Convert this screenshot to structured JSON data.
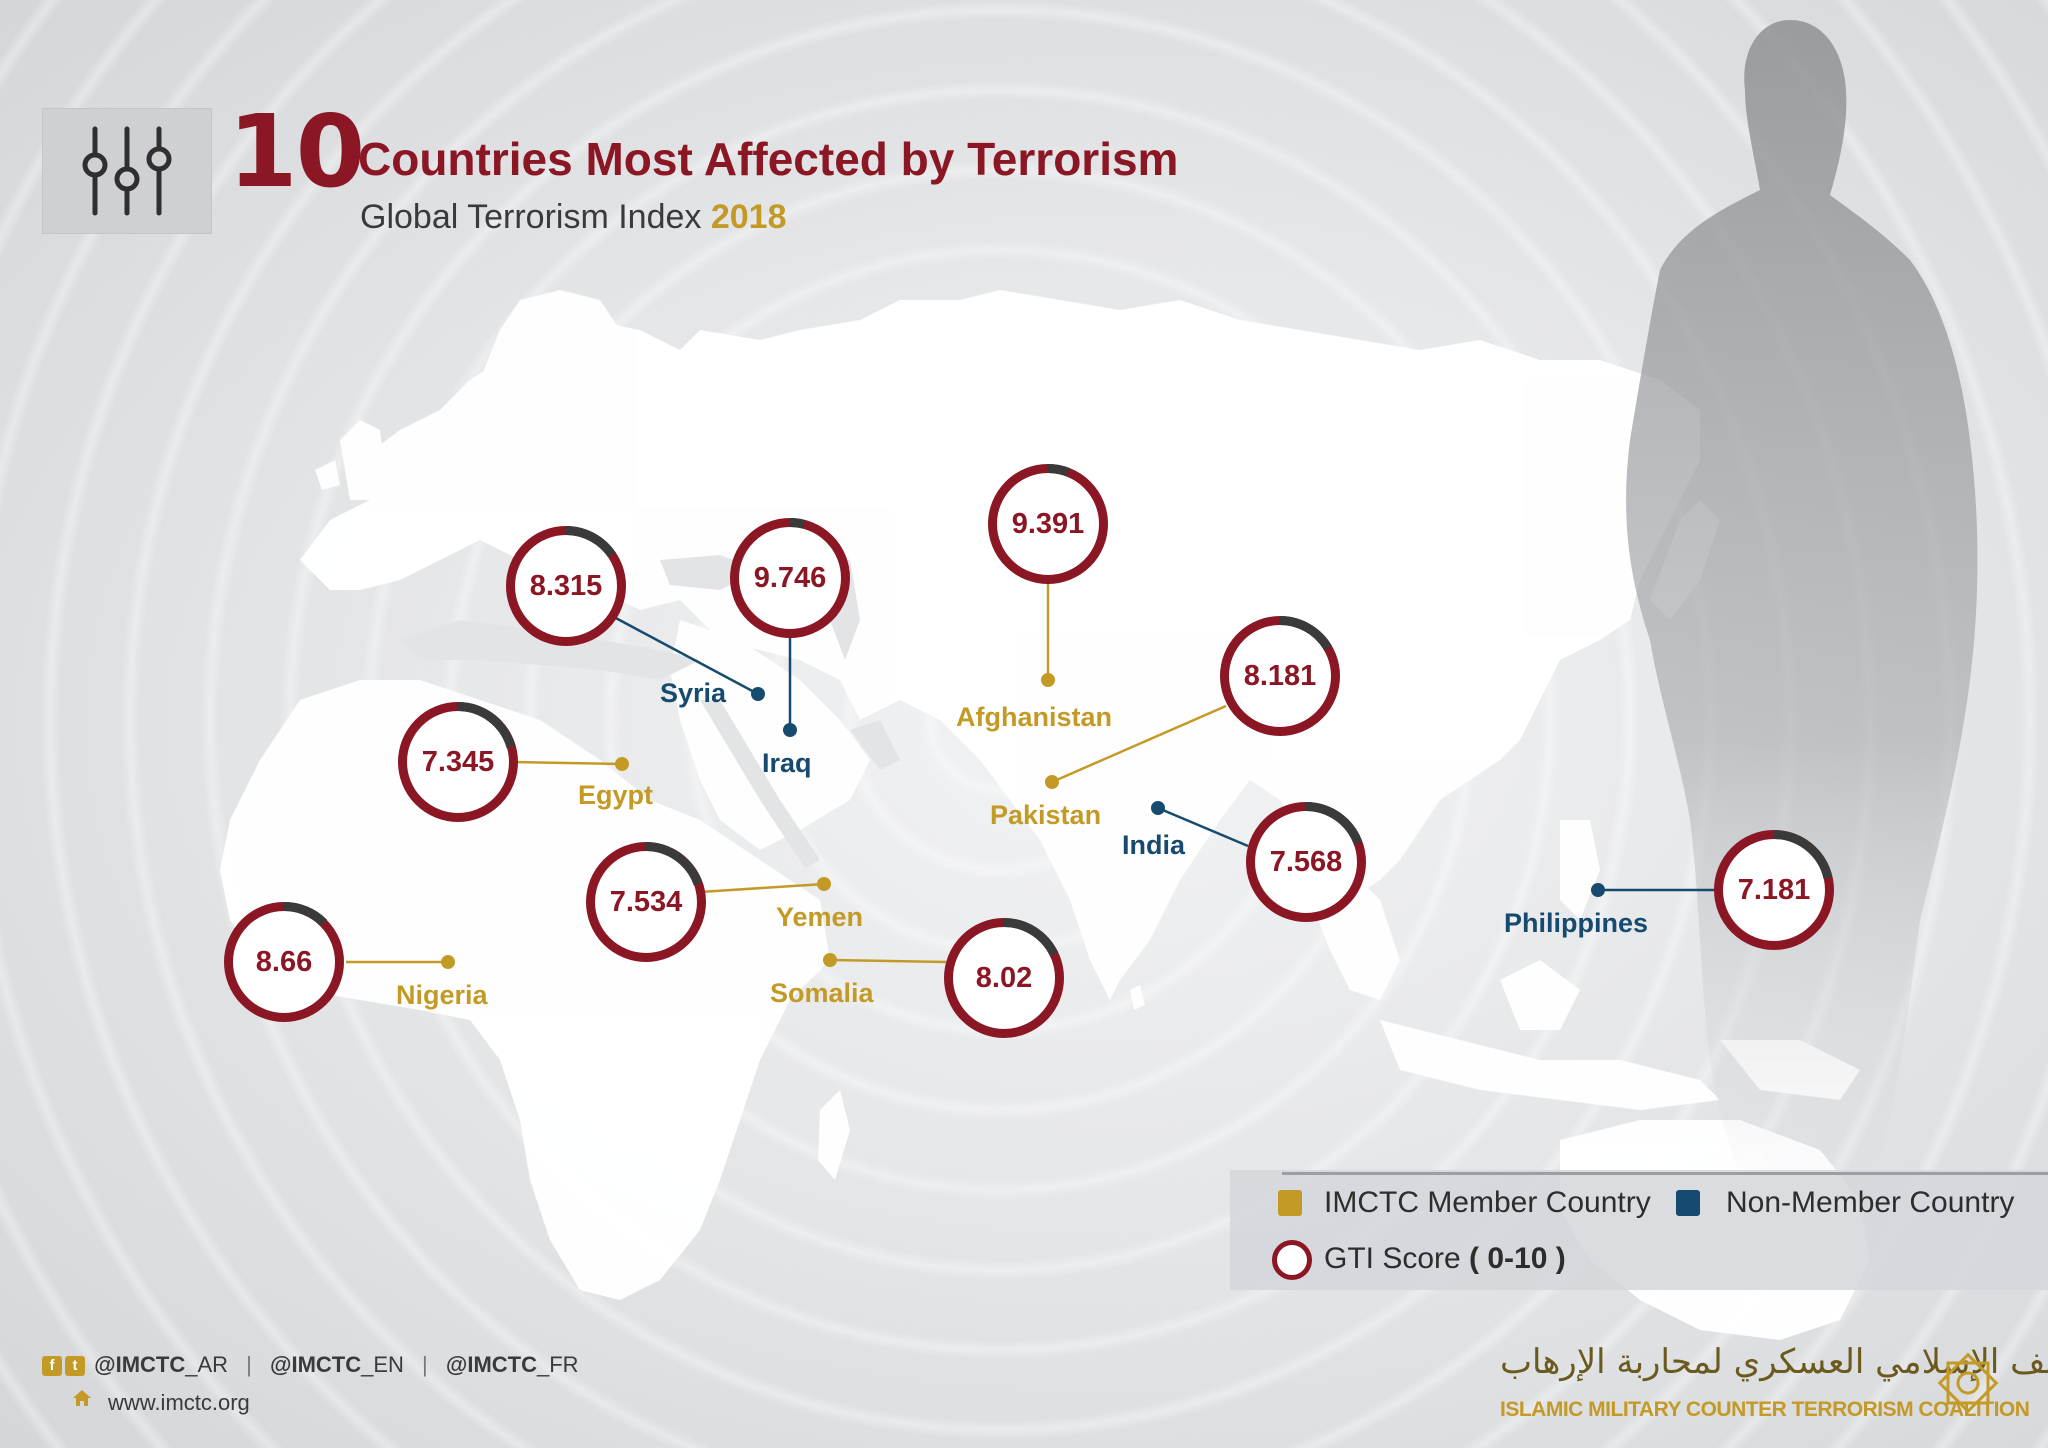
{
  "header": {
    "title_number": "10",
    "title_text": "Countries Most Affected by Terrorism",
    "subtitle_prefix": "Global Terrorism Index",
    "subtitle_year": "2018",
    "icon": "sliders-icon"
  },
  "colors": {
    "brand_red": "#8b1624",
    "member_gold": "#c49a26",
    "nonmember_blue": "#164a6e",
    "ring_dark": "#3a3a3a"
  },
  "countries": [
    {
      "name": "Iraq",
      "score": "9.746",
      "membership": "non-member"
    },
    {
      "name": "Afghanistan",
      "score": "9.391",
      "membership": "member"
    },
    {
      "name": "Nigeria",
      "score": "8.66",
      "membership": "member"
    },
    {
      "name": "Syria",
      "score": "8.315",
      "membership": "non-member"
    },
    {
      "name": "Pakistan",
      "score": "8.181",
      "membership": "member"
    },
    {
      "name": "Somalia",
      "score": "8.02",
      "membership": "member"
    },
    {
      "name": "India",
      "score": "7.568",
      "membership": "non-member"
    },
    {
      "name": "Yemen",
      "score": "7.534",
      "membership": "member"
    },
    {
      "name": "Egypt",
      "score": "7.345",
      "membership": "member"
    },
    {
      "name": "Philippines",
      "score": "7.181",
      "membership": "non-member"
    }
  ],
  "legend": {
    "member_label": "IMCTC Member Country",
    "nonmember_label": "Non-Member Country",
    "score_label": "GTI Score",
    "score_range": "( 0-10 )"
  },
  "footer": {
    "handle_ar": "@IMCTC",
    "handle_ar_suffix": "_AR",
    "handle_en": "@IMCTC",
    "handle_en_suffix": "_EN",
    "handle_fr": "@IMCTC",
    "handle_fr_suffix": "_FR",
    "separator": "|",
    "website": "www.imctc.org",
    "org_name_arabic": "التحالف الإسلامي العسكري لمحاربة الإرهاب",
    "org_name_english": "ISLAMIC MILITARY COUNTER TERRORISM COALITION",
    "icons": [
      "facebook-icon",
      "twitter-icon",
      "home-icon",
      "coalition-emblem-icon"
    ]
  }
}
